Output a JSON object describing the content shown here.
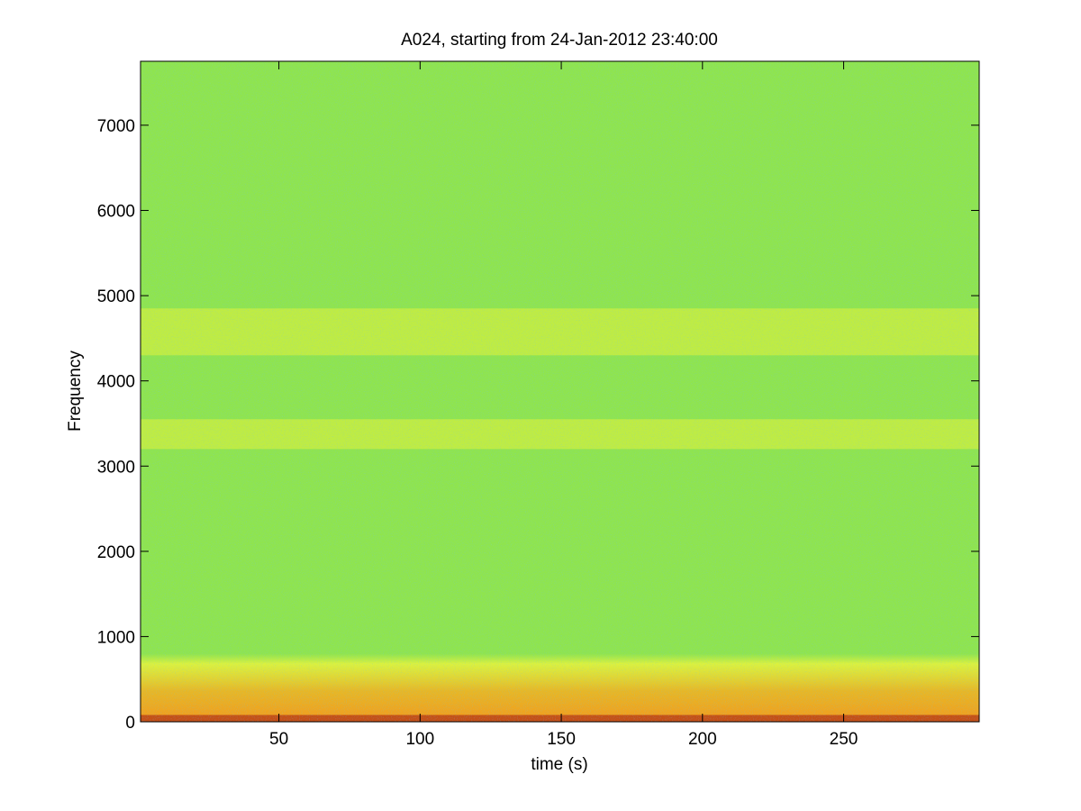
{
  "chart_data": {
    "type": "heatmap",
    "title": "A024, starting from 24-Jan-2012 23:40:00",
    "xlabel": "time (s)",
    "ylabel": "Frequency",
    "xlim": [
      1,
      298
    ],
    "ylim": [
      0,
      7750
    ],
    "x_ticks": [
      50,
      100,
      150,
      200,
      250
    ],
    "y_ticks": [
      0,
      1000,
      2000,
      3000,
      4000,
      5000,
      6000,
      7000
    ],
    "grid": false,
    "legend": "none",
    "colormap": "jet",
    "colors": {
      "background_level": "#8fe44f",
      "band_level": "#e8f23a",
      "low_freq_level": "#f0b020",
      "peak_level": "#a01010"
    },
    "energy_bands": [
      {
        "freq_range": [
          4300,
          4850
        ],
        "time_range": [
          1,
          298
        ],
        "intensity": "elevated"
      },
      {
        "freq_range": [
          3200,
          3550
        ],
        "time_range": [
          1,
          298
        ],
        "intensity": "elevated"
      },
      {
        "freq_range": [
          0,
          800
        ],
        "time_range": [
          1,
          298
        ],
        "intensity": "high"
      },
      {
        "freq_range": [
          0,
          80
        ],
        "time_range": [
          1,
          298
        ],
        "intensity": "peak"
      }
    ]
  }
}
